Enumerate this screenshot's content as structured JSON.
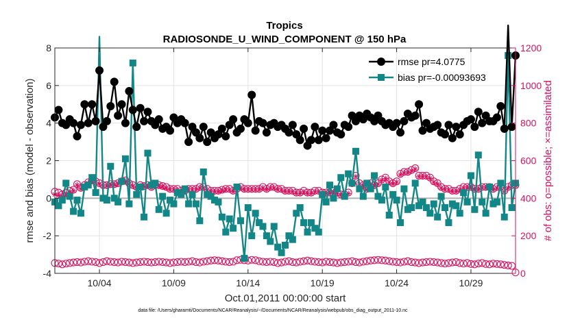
{
  "chart_data": {
    "type": "line",
    "title": "Tropics",
    "subtitle": "RADIOSONDE_U_WIND_COMPONENT @ 150 hPa",
    "xlabel": "Oct.01,2011 00:00:00 start",
    "ylabel": "rmse and bias (model - observation)",
    "y2label": "# of obs: o=possible; ×=assimilated",
    "xlim": [
      1.0,
      32.0
    ],
    "ylim": [
      -4,
      8
    ],
    "y2lim": [
      0,
      1200
    ],
    "xticks": [
      4,
      9,
      14,
      19,
      24,
      29
    ],
    "xtick_labels": [
      "10/04",
      "10/09",
      "10/14",
      "10/19",
      "10/24",
      "10/29"
    ],
    "yticks": [
      -4,
      -2,
      0,
      2,
      4,
      6,
      8
    ],
    "ytick_labels": [
      "-4",
      "-2",
      "0",
      "2",
      "4",
      "6",
      "8"
    ],
    "y2ticks": [
      0,
      200,
      400,
      600,
      800,
      1000,
      1200
    ],
    "y2tick_labels": [
      "0",
      "200",
      "400",
      "600",
      "800",
      "1000",
      "1200"
    ],
    "zero_line": 0,
    "grid": true,
    "legend_position": "top-right",
    "x": [
      1.0,
      1.25,
      1.5,
      1.75,
      2.0,
      2.25,
      2.5,
      2.75,
      3.0,
      3.25,
      3.5,
      3.75,
      4.0,
      4.25,
      4.5,
      4.75,
      5.0,
      5.25,
      5.5,
      5.75,
      6.0,
      6.25,
      6.5,
      6.75,
      7.0,
      7.25,
      7.5,
      7.75,
      8.0,
      8.25,
      8.5,
      8.75,
      9.0,
      9.25,
      9.5,
      9.75,
      10.0,
      10.25,
      10.5,
      10.75,
      11.0,
      11.25,
      11.5,
      11.75,
      12.0,
      12.25,
      12.5,
      12.75,
      13.0,
      13.25,
      13.5,
      13.75,
      14.0,
      14.25,
      14.5,
      14.75,
      15.0,
      15.25,
      15.5,
      15.75,
      16.0,
      16.25,
      16.5,
      16.75,
      17.0,
      17.25,
      17.5,
      17.75,
      18.0,
      18.25,
      18.5,
      18.75,
      19.0,
      19.25,
      19.5,
      19.75,
      20.0,
      20.25,
      20.5,
      20.75,
      21.0,
      21.25,
      21.5,
      21.75,
      22.0,
      22.25,
      22.5,
      22.75,
      23.0,
      23.25,
      23.5,
      23.75,
      24.0,
      24.25,
      24.5,
      24.75,
      25.0,
      25.25,
      25.5,
      25.75,
      26.0,
      26.25,
      26.5,
      26.75,
      27.0,
      27.25,
      27.5,
      27.75,
      28.0,
      28.25,
      28.5,
      28.75,
      29.0,
      29.25,
      29.5,
      29.75,
      30.0,
      30.25,
      30.5,
      30.75,
      31.0,
      31.25,
      31.5,
      31.75,
      32.0
    ],
    "series": [
      {
        "name": "rmse pr=4.0775",
        "axis": "left",
        "color": "#000000",
        "marker": "circle",
        "values": [
          4.3,
          4.7,
          4.0,
          3.9,
          4.2,
          4.0,
          3.3,
          3.9,
          5.0,
          4.0,
          5.0,
          4.1,
          6.8,
          3.8,
          4.1,
          4.9,
          6.2,
          4.4,
          5.0,
          4.0,
          5.7,
          4.7,
          3.8,
          4.8,
          4.1,
          4.6,
          4.1,
          3.9,
          4.2,
          3.7,
          3.8,
          3.6,
          4.3,
          4.0,
          4.2,
          4.0,
          3.0,
          3.8,
          3.5,
          3.2,
          3.8,
          3.0,
          3.5,
          3.2,
          3.4,
          3.7,
          3.3,
          3.9,
          4.2,
          3.5,
          3.7,
          4.2,
          4.0,
          5.5,
          3.6,
          4.1,
          4.0,
          3.5,
          3.9,
          4.0,
          3.8,
          3.9,
          3.7,
          3.5,
          3.9,
          3.4,
          3.1,
          3.7,
          2.8,
          3.1,
          3.8,
          3.1,
          3.6,
          3.2,
          3.6,
          3.9,
          3.5,
          3.4,
          3.9,
          3.8,
          4.4,
          4.1,
          4.4,
          4.2,
          4.5,
          4.3,
          4.1,
          4.4,
          4.1,
          3.9,
          4.0,
          3.8,
          4.0,
          3.5,
          4.1,
          4.5,
          4.3,
          4.4,
          5.0,
          3.6,
          4.0,
          3.7,
          3.8,
          3.9,
          3.5,
          3.4,
          3.9,
          3.2,
          3.8,
          3.4,
          3.9,
          4.1,
          4.2,
          3.8,
          4.6,
          4.0,
          4.4,
          4.1,
          4.1,
          4.3,
          4.9,
          3.7,
          9.2,
          3.8,
          7.6
        ]
      },
      {
        "name": "bias pr=-0.00093693",
        "axis": "left",
        "color": "#138787",
        "marker": "square",
        "values": [
          -0.2,
          -0.4,
          -0.1,
          0.8,
          0.1,
          -0.7,
          -0.1,
          -0.8,
          0.6,
          0.7,
          1.1,
          0.3,
          8.6,
          0.0,
          -0.1,
          1.7,
          0.0,
          -0.2,
          0.9,
          2.1,
          -0.3,
          7.2,
          0.2,
          0.6,
          -1.0,
          2.4,
          0.7,
          0.8,
          -0.6,
          0.1,
          -0.8,
          -0.1,
          -0.3,
          0.3,
          0.2,
          0.5,
          -0.3,
          0.2,
          -0.3,
          -1.2,
          1.4,
          0.2,
          0.1,
          -0.1,
          -0.2,
          -1.0,
          -1.8,
          -1.1,
          -1.6,
          0.6,
          -1.2,
          -3.2,
          -0.5,
          -2.0,
          -0.8,
          -1.3,
          -1.5,
          -2.0,
          -2.3,
          -1.5,
          -2.6,
          -2.9,
          -2.5,
          -2.0,
          -2.2,
          -0.8,
          -0.5,
          -1.3,
          -1.8,
          -1.3,
          -1.6,
          -1.8,
          0.2,
          -0.2,
          0.7,
          0.0,
          0.5,
          1.1,
          0.1,
          1.3,
          0.8,
          2.5,
          0.5,
          0.1,
          0.8,
          0.5,
          1.2,
          0.1,
          -0.1,
          0.6,
          -0.9,
          0.2,
          -0.1,
          -1.3,
          0.5,
          -0.6,
          -0.5,
          0.8,
          -0.4,
          -0.2,
          -0.5,
          -0.8,
          -0.3,
          -1.0,
          0.1,
          -0.5,
          -1.3,
          -0.3,
          -0.4,
          -0.8,
          0.3,
          -0.2,
          1.2,
          -0.6,
          2.3,
          -0.2,
          -0.8,
          0.6,
          -0.3,
          -0.2,
          0.8,
          -1.0,
          7.6,
          -0.5,
          0.8
        ]
      },
      {
        "name": "obs possible",
        "axis": "right",
        "color": "#d6135f",
        "marker": "circle-open",
        "values": [
          435,
          430,
          420,
          430,
          440,
          445,
          475,
          455,
          470,
          485,
          495,
          490,
          480,
          470,
          470,
          475,
          475,
          480,
          490,
          495,
          480,
          470,
          460,
          470,
          465,
          470,
          460,
          470,
          470,
          465,
          460,
          450,
          450,
          450,
          440,
          440,
          450,
          450,
          450,
          460,
          460,
          450,
          440,
          440,
          440,
          445,
          450,
          450,
          440,
          450,
          460,
          450,
          450,
          450,
          450,
          450,
          460,
          450,
          460,
          460,
          450,
          450,
          440,
          440,
          440,
          430,
          430,
          440,
          430,
          430,
          440,
          440,
          430,
          430,
          430,
          440,
          430,
          420,
          420,
          430,
          480,
          520,
          480,
          470,
          450,
          480,
          470,
          480,
          500,
          510,
          490,
          480,
          490,
          530,
          540,
          540,
          550,
          560,
          520,
          520,
          520,
          510,
          490,
          480,
          460,
          450,
          450,
          440,
          440,
          450,
          460,
          460,
          460,
          450,
          450,
          460,
          460,
          460,
          450,
          460,
          460,
          440,
          460,
          470,
          470
        ]
      },
      {
        "name": "obs assimilated",
        "axis": "right",
        "color": "#d6135f",
        "marker": "asterisk",
        "values": [
          420,
          415,
          410,
          420,
          430,
          440,
          470,
          450,
          465,
          480,
          490,
          485,
          475,
          465,
          465,
          470,
          470,
          475,
          485,
          490,
          475,
          465,
          455,
          465,
          460,
          465,
          455,
          465,
          465,
          460,
          455,
          445,
          445,
          445,
          435,
          435,
          445,
          445,
          445,
          455,
          455,
          445,
          435,
          435,
          435,
          440,
          445,
          445,
          435,
          445,
          455,
          445,
          445,
          445,
          445,
          445,
          455,
          445,
          455,
          455,
          445,
          445,
          435,
          435,
          435,
          425,
          425,
          435,
          425,
          425,
          435,
          435,
          425,
          425,
          425,
          435,
          425,
          415,
          415,
          425,
          475,
          515,
          475,
          465,
          445,
          475,
          465,
          475,
          495,
          505,
          485,
          475,
          485,
          525,
          535,
          535,
          545,
          555,
          515,
          515,
          515,
          505,
          485,
          475,
          455,
          445,
          445,
          435,
          435,
          445,
          455,
          455,
          455,
          445,
          445,
          455,
          455,
          455,
          445,
          455,
          455,
          435,
          455,
          465,
          465
        ]
      },
      {
        "name": "obs possible (small)",
        "axis": "right",
        "color": "#d6135f",
        "marker": "circle-open",
        "values": [
          55,
          52,
          48,
          52,
          55,
          58,
          60,
          58,
          62,
          65,
          62,
          60,
          55,
          60,
          65,
          62,
          60,
          58,
          62,
          60,
          58,
          55,
          58,
          60,
          62,
          60,
          58,
          60,
          62,
          60,
          58,
          55,
          58,
          60,
          62,
          60,
          62,
          65,
          60,
          58,
          62,
          65,
          68,
          70,
          68,
          65,
          62,
          60,
          62,
          70,
          72,
          70,
          68,
          72,
          70,
          65,
          62,
          60,
          62,
          60,
          55,
          58,
          62,
          65,
          60,
          58,
          62,
          65,
          68,
          65,
          62,
          60,
          58,
          62,
          60,
          58,
          55,
          58,
          60,
          62,
          65,
          60,
          58,
          62,
          65,
          68,
          70,
          72,
          70,
          68,
          65,
          62,
          60,
          58,
          62,
          65,
          60,
          58,
          55,
          58,
          60,
          62,
          60,
          58,
          55,
          52,
          55,
          58,
          60,
          55,
          52,
          55,
          50,
          48,
          52,
          55,
          50,
          48,
          52,
          50,
          48,
          45,
          42,
          40,
          5
        ]
      }
    ]
  },
  "footer": "data file: /Users/gharamti/Documents/NCAR/Reanalysis/~/Documents/NCAR/Reanalysis/webpub/obs_diag_output_2011-10.nc"
}
